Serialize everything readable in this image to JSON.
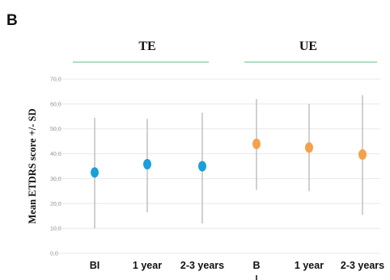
{
  "chart_data": {
    "type": "scatter",
    "panel_label": "B",
    "ylabel": "Mean ETDRS score +/- SD",
    "ylim": [
      0,
      70
    ],
    "yticks": [
      "0,0",
      "10,0",
      "20,0",
      "30,0",
      "40,0",
      "50,0",
      "60,0",
      "70,0"
    ],
    "grid": true,
    "groups": [
      {
        "label": "TE",
        "color": "#1a9fd8",
        "line_color": "#7ecb9a"
      },
      {
        "label": "UE",
        "color": "#f5a04a",
        "line_color": "#7ecb9a"
      }
    ],
    "categories": [
      "BI",
      "1 year",
      "2-3 years",
      "B",
      "1 year",
      "2-3 years"
    ],
    "points": [
      {
        "category": "BI",
        "group": "TE",
        "mean": 32.5,
        "low": 10.0,
        "high": 54.5
      },
      {
        "category": "1 year",
        "group": "TE",
        "mean": 35.8,
        "low": 16.5,
        "high": 54.0
      },
      {
        "category": "2-3 years",
        "group": "TE",
        "mean": 35.0,
        "low": 12.0,
        "high": 56.5
      },
      {
        "category": "B",
        "group": "UE",
        "mean": 44.0,
        "low": 25.5,
        "high": 62.0
      },
      {
        "category": "1 year",
        "group": "UE",
        "mean": 42.5,
        "low": 25.0,
        "high": 60.0
      },
      {
        "category": "2-3 years",
        "group": "UE",
        "mean": 39.7,
        "low": 15.5,
        "high": 63.5
      }
    ],
    "err_color": "#c4c4c4",
    "grid_color": "#e8e8e8"
  }
}
